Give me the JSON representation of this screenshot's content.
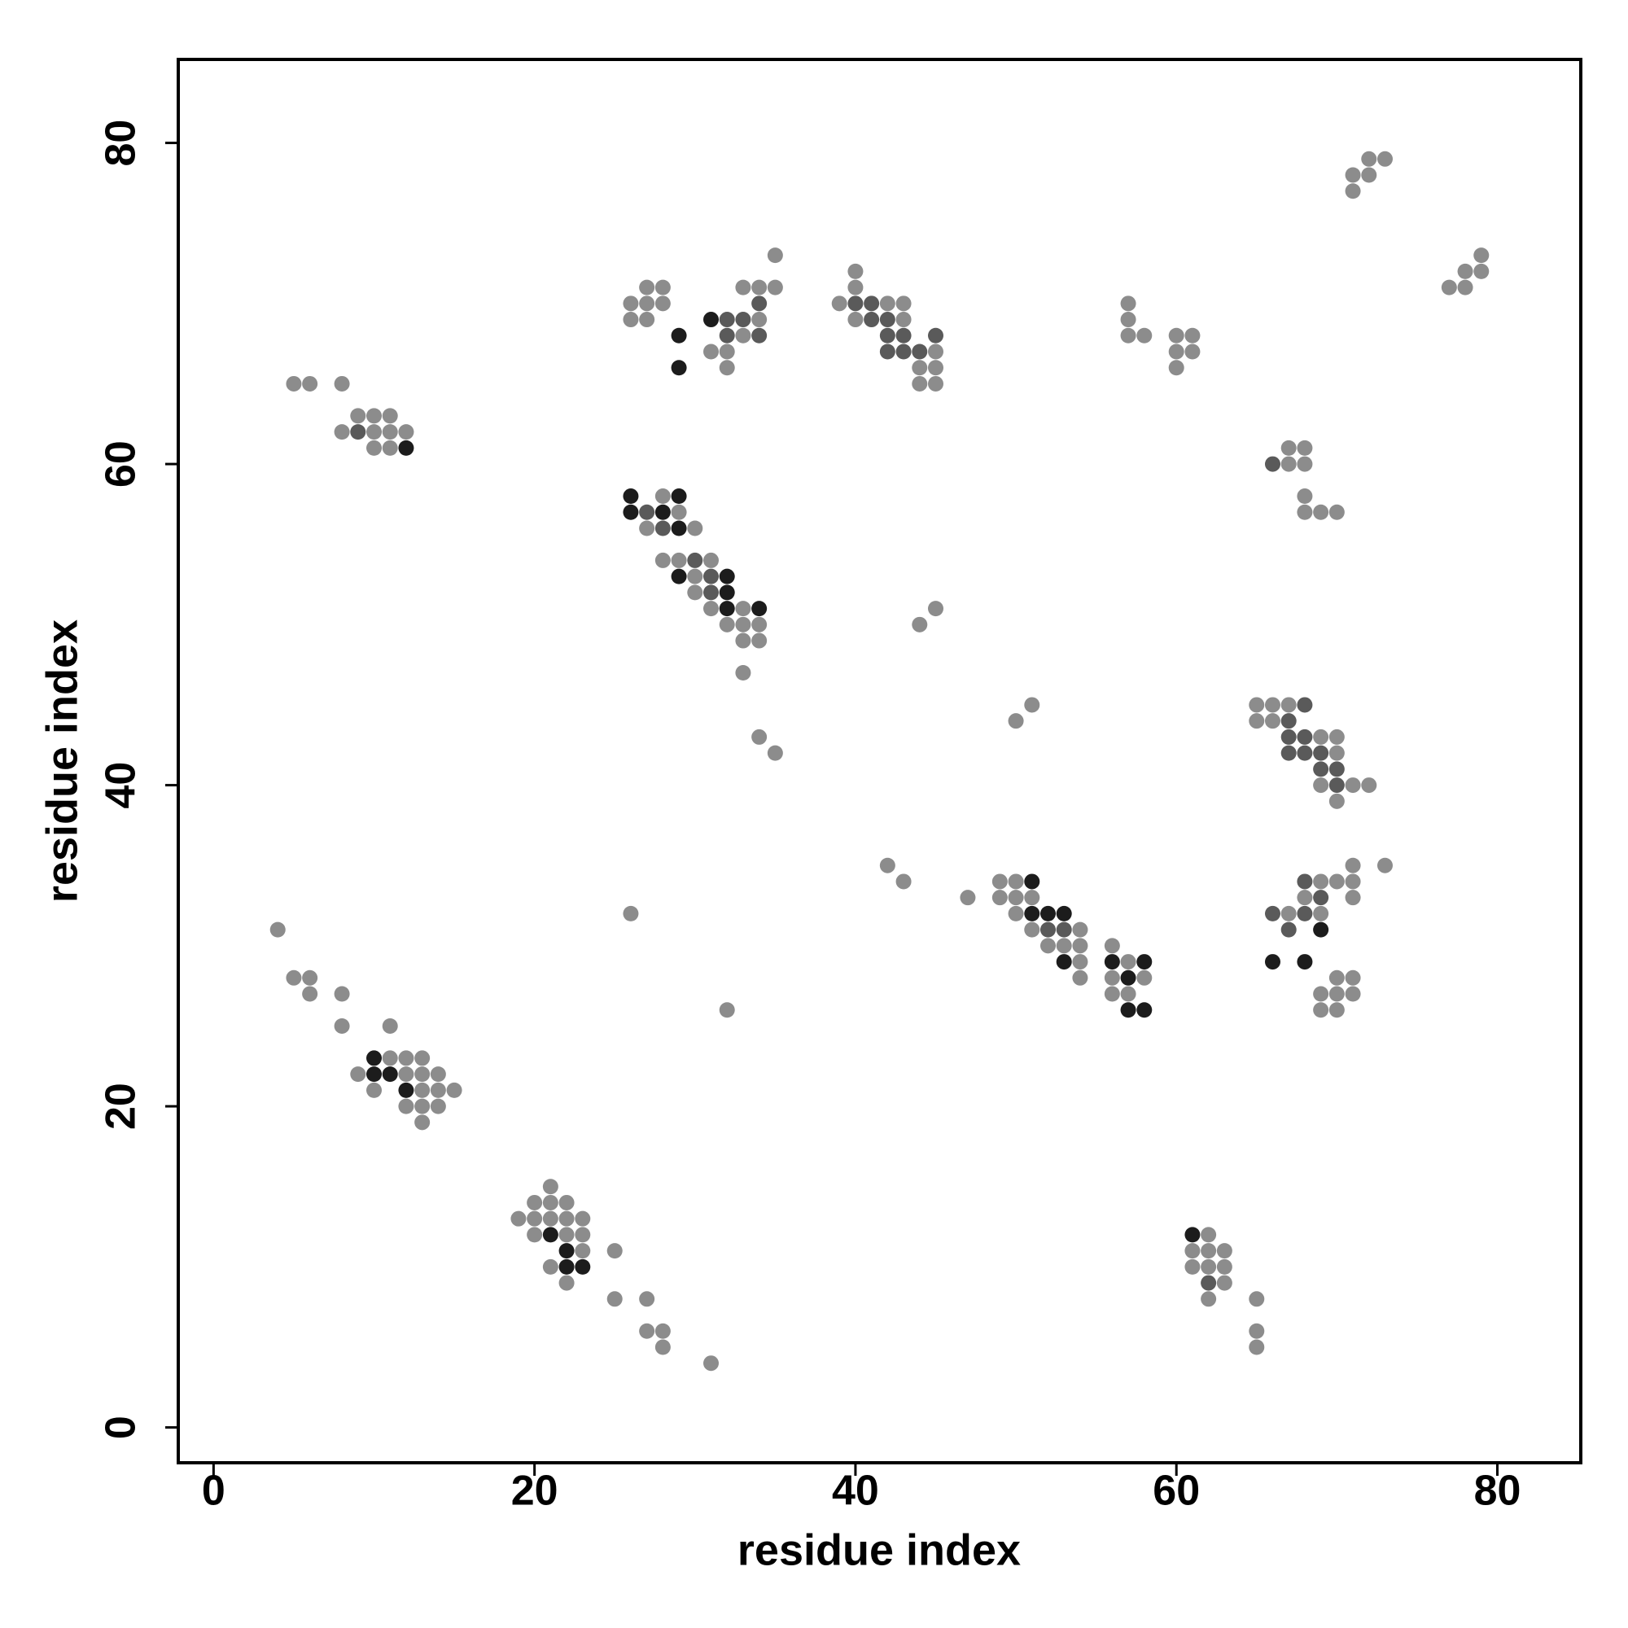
{
  "chart_data": {
    "type": "scatter",
    "xlabel": "residue index",
    "ylabel": "residue index",
    "xlim": [
      -2.2,
      85.2
    ],
    "ylim": [
      -2.2,
      85.2
    ],
    "xticks": [
      0,
      20,
      40,
      60,
      80
    ],
    "yticks": [
      0,
      20,
      40,
      60,
      80
    ],
    "series": [
      {
        "color": "#8c8c8c",
        "x": [
          4,
          5,
          6,
          6,
          8,
          8,
          11,
          11,
          12,
          13,
          9,
          12,
          13,
          14,
          10,
          13,
          14,
          15,
          12,
          13,
          14,
          13,
          21,
          20,
          21,
          22,
          19,
          20,
          21,
          22,
          23,
          20,
          22,
          23,
          23,
          25,
          21,
          22,
          25,
          27,
          27,
          28,
          28,
          31,
          62,
          61,
          62,
          63,
          61,
          62,
          63,
          63,
          62,
          65,
          65,
          65,
          26,
          32,
          5,
          6,
          8,
          9,
          10,
          11,
          8,
          10,
          11,
          12,
          10,
          11,
          35,
          27,
          28,
          33,
          34,
          35,
          26,
          27,
          28,
          26,
          27,
          34,
          33,
          31,
          32,
          32,
          40,
          40,
          39,
          42,
          43,
          40,
          43,
          45,
          44,
          45,
          44,
          45,
          57,
          57,
          57,
          58,
          60,
          61,
          60,
          61,
          60,
          71,
          72,
          73,
          72,
          71,
          79,
          78,
          79,
          77,
          78,
          67,
          68,
          67,
          68,
          68,
          68,
          69,
          70,
          28,
          29,
          27,
          30,
          28,
          29,
          31,
          30,
          30,
          31,
          33,
          32,
          33,
          34,
          33,
          34,
          33,
          34,
          35,
          44,
          45,
          50,
          51,
          42,
          43,
          47,
          49,
          50,
          49,
          50,
          51,
          50,
          51,
          54,
          52,
          53,
          54,
          56,
          54,
          57,
          54,
          58,
          56,
          56,
          57,
          65,
          66,
          67,
          65,
          66,
          69,
          70,
          70,
          69,
          71,
          72,
          70,
          71,
          73,
          69,
          70,
          71,
          68,
          71,
          67,
          69,
          70,
          71,
          69,
          70,
          71,
          69,
          70
        ],
        "y": [
          31,
          28,
          28,
          27,
          27,
          25,
          25,
          23,
          23,
          23,
          22,
          22,
          22,
          22,
          21,
          21,
          21,
          21,
          20,
          20,
          20,
          19,
          15,
          14,
          14,
          14,
          13,
          13,
          13,
          13,
          13,
          12,
          12,
          12,
          11,
          11,
          10,
          9,
          8,
          8,
          6,
          6,
          5,
          4,
          12,
          11,
          11,
          11,
          10,
          10,
          10,
          9,
          8,
          8,
          6,
          5,
          32,
          26,
          65,
          65,
          65,
          63,
          63,
          63,
          62,
          62,
          62,
          62,
          61,
          61,
          73,
          71,
          71,
          71,
          71,
          71,
          70,
          70,
          70,
          69,
          69,
          69,
          68,
          67,
          67,
          66,
          72,
          71,
          70,
          70,
          70,
          69,
          69,
          67,
          66,
          66,
          65,
          65,
          70,
          69,
          68,
          68,
          68,
          68,
          67,
          67,
          66,
          78,
          79,
          79,
          78,
          77,
          73,
          72,
          72,
          71,
          71,
          61,
          61,
          60,
          60,
          58,
          57,
          57,
          57,
          58,
          57,
          56,
          56,
          54,
          54,
          54,
          53,
          52,
          51,
          51,
          50,
          50,
          50,
          49,
          49,
          47,
          43,
          42,
          50,
          51,
          44,
          45,
          35,
          34,
          33,
          34,
          34,
          33,
          33,
          33,
          32,
          31,
          31,
          30,
          30,
          30,
          30,
          29,
          29,
          28,
          28,
          28,
          27,
          27,
          45,
          45,
          45,
          44,
          44,
          43,
          43,
          42,
          40,
          40,
          40,
          39,
          35,
          35,
          34,
          34,
          34,
          33,
          33,
          32,
          32,
          28,
          28,
          27,
          27,
          27,
          26,
          26
        ]
      },
      {
        "color": "#5a5a5a",
        "x": [
          62,
          9,
          34,
          32,
          33,
          32,
          34,
          40,
          41,
          41,
          42,
          42,
          43,
          45,
          42,
          43,
          44,
          66,
          27,
          28,
          30,
          31,
          31,
          52,
          53,
          68,
          67,
          67,
          68,
          67,
          68,
          69,
          69,
          70,
          70,
          68,
          69,
          66,
          68,
          67
        ],
        "y": [
          9,
          62,
          70,
          69,
          69,
          68,
          68,
          70,
          70,
          69,
          69,
          68,
          68,
          68,
          67,
          67,
          67,
          60,
          57,
          56,
          54,
          53,
          52,
          31,
          31,
          45,
          44,
          43,
          43,
          42,
          42,
          42,
          41,
          41,
          40,
          34,
          33,
          32,
          32,
          31
        ]
      },
      {
        "color": "#1c1c1c",
        "x": [
          10,
          10,
          11,
          12,
          21,
          22,
          22,
          23,
          61,
          12,
          31,
          29,
          29,
          26,
          29,
          26,
          28,
          29,
          29,
          32,
          32,
          32,
          34,
          51,
          51,
          52,
          53,
          53,
          56,
          58,
          57,
          57,
          58,
          69,
          66,
          68
        ],
        "y": [
          23,
          22,
          22,
          21,
          12,
          11,
          10,
          10,
          12,
          61,
          69,
          68,
          66,
          58,
          58,
          57,
          57,
          56,
          53,
          53,
          52,
          51,
          51,
          34,
          32,
          32,
          32,
          29,
          29,
          29,
          28,
          26,
          26,
          31,
          29,
          29
        ]
      }
    ]
  }
}
